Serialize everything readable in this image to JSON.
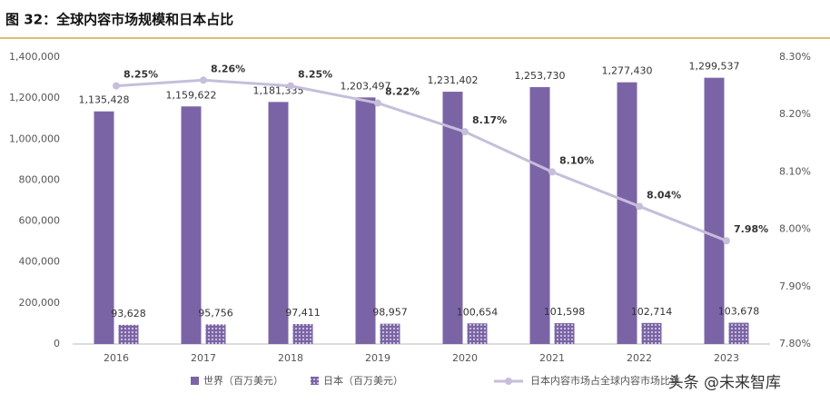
{
  "chart_data": {
    "type": "bar-line",
    "title": "图 32：全球内容市场规模和日本占比",
    "categories": [
      "2016",
      "2017",
      "2018",
      "2019",
      "2020",
      "2021",
      "2022",
      "2023"
    ],
    "series": [
      {
        "name": "世界（百万美元）",
        "type": "bar",
        "color": "#7b64a6",
        "values": [
          1135428,
          1159622,
          1181335,
          1203497,
          1231402,
          1253730,
          1277430,
          1299537
        ],
        "value_labels": [
          "1,135,428",
          "1,159,622",
          "1,181,335",
          "1,203,497",
          "1,231,402",
          "1,253,730",
          "1,277,430",
          "1,299,537"
        ]
      },
      {
        "name": "日本（百万美元）",
        "type": "bar",
        "color": "#7b64a6",
        "pattern": "dots",
        "values": [
          93628,
          95756,
          97411,
          98957,
          100654,
          101598,
          102714,
          103678
        ],
        "value_labels": [
          "93,628",
          "95,756",
          "97,411",
          "98,957",
          "100,654",
          "101,598",
          "102,714",
          "103,678"
        ]
      },
      {
        "name": "日本内容市场占全球内容市场比重",
        "type": "line",
        "axis": "y2",
        "color": "#c6bedb",
        "values": [
          8.25,
          8.26,
          8.25,
          8.22,
          8.17,
          8.1,
          8.04,
          7.98
        ],
        "value_labels": [
          "8.25%",
          "8.26%",
          "8.25%",
          "8.22%",
          "8.17%",
          "8.10%",
          "8.04%",
          "7.98%"
        ]
      }
    ],
    "ylim": [
      0,
      1400000
    ],
    "yticks": [
      {
        "value": 0,
        "label": "0"
      },
      {
        "value": 200000,
        "label": "200,000"
      },
      {
        "value": 400000,
        "label": "400,000"
      },
      {
        "value": 600000,
        "label": "600,000"
      },
      {
        "value": 800000,
        "label": "800,000"
      },
      {
        "value": 1000000,
        "label": "1,000,000"
      },
      {
        "value": 1200000,
        "label": "1,200,000"
      },
      {
        "value": 1400000,
        "label": "1,400,000"
      }
    ],
    "y2lim": [
      7.8,
      8.3
    ],
    "y2ticks": [
      {
        "value": 7.8,
        "label": "7.80%"
      },
      {
        "value": 7.9,
        "label": "7.90%"
      },
      {
        "value": 8.0,
        "label": "8.00%"
      },
      {
        "value": 8.1,
        "label": "8.10%"
      },
      {
        "value": 8.2,
        "label": "8.20%"
      },
      {
        "value": 8.3,
        "label": "8.30%"
      }
    ],
    "watermark": "头条 @未来智库"
  }
}
